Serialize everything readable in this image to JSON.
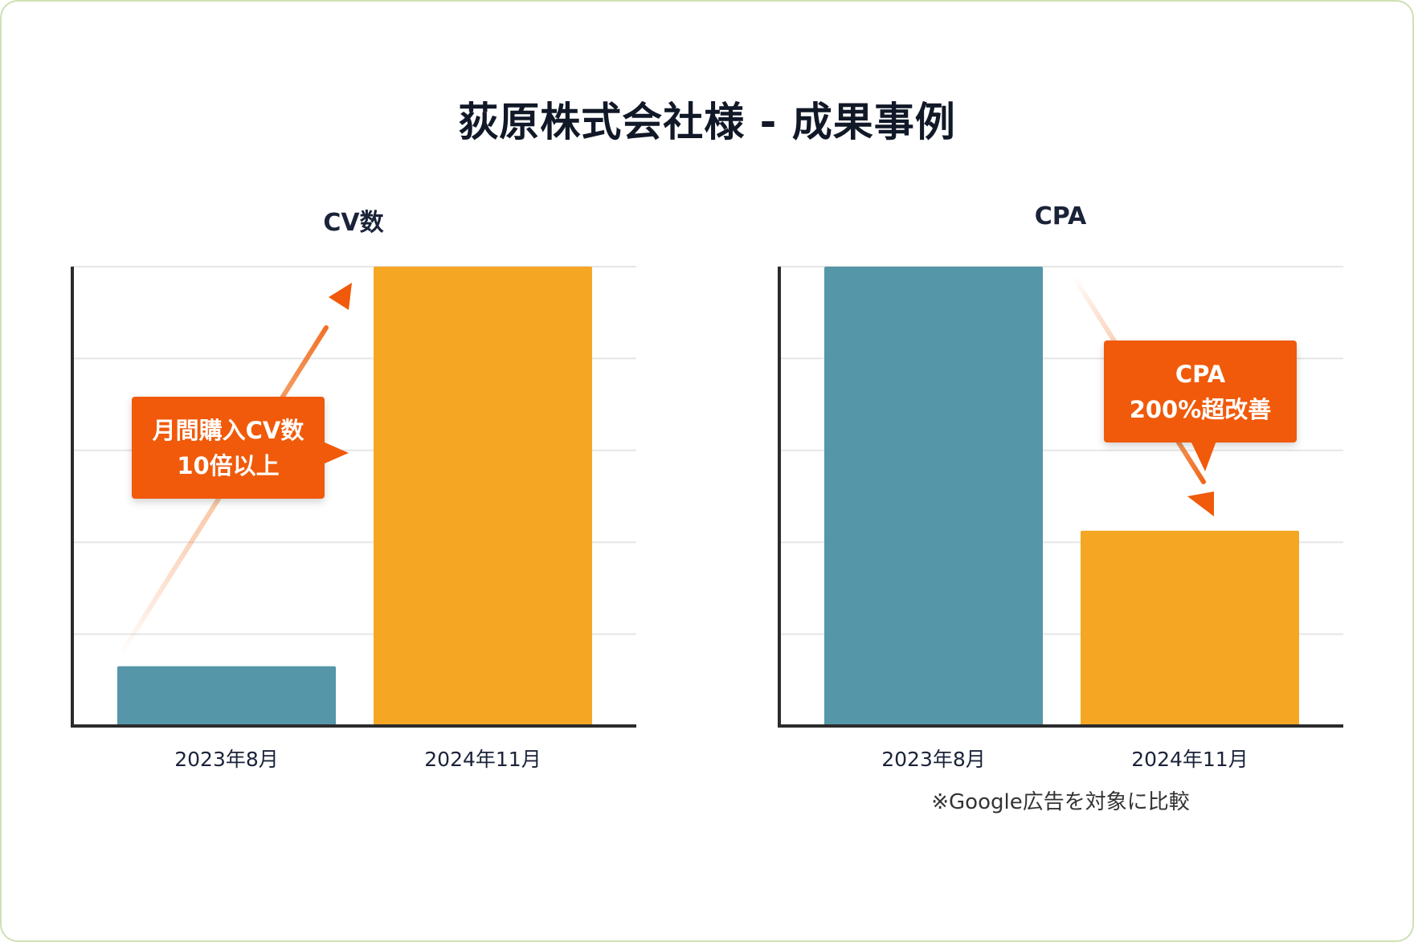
{
  "header": {
    "title": "荻原株式会社様 - 成果事例"
  },
  "footnote": "※Google広告を対象に比較",
  "callouts": {
    "cv": {
      "line1": "月間購入CV数",
      "line2": "10倍以上"
    },
    "cpa": {
      "line1": "CPA",
      "line2": "200%超改善"
    }
  },
  "colors": {
    "before": "#5596a8",
    "after": "#f5a623",
    "accent": "#f05a0a",
    "axis": "#2b2b2b",
    "grid": "#e6e6e6"
  },
  "chart_data": [
    {
      "type": "bar",
      "title": "CV数",
      "categories": [
        "2023年8月",
        "2024年11月"
      ],
      "values": [
        1.3,
        10
      ],
      "ylim": [
        0,
        10
      ],
      "grid": true,
      "gridlines": 5,
      "annotation": "上昇矢印"
    },
    {
      "type": "bar",
      "title": "CPA",
      "categories": [
        "2023年8月",
        "2024年11月"
      ],
      "values": [
        10,
        4.25
      ],
      "ylim": [
        0,
        10
      ],
      "grid": true,
      "gridlines": 5,
      "annotation": "下降矢印"
    }
  ]
}
